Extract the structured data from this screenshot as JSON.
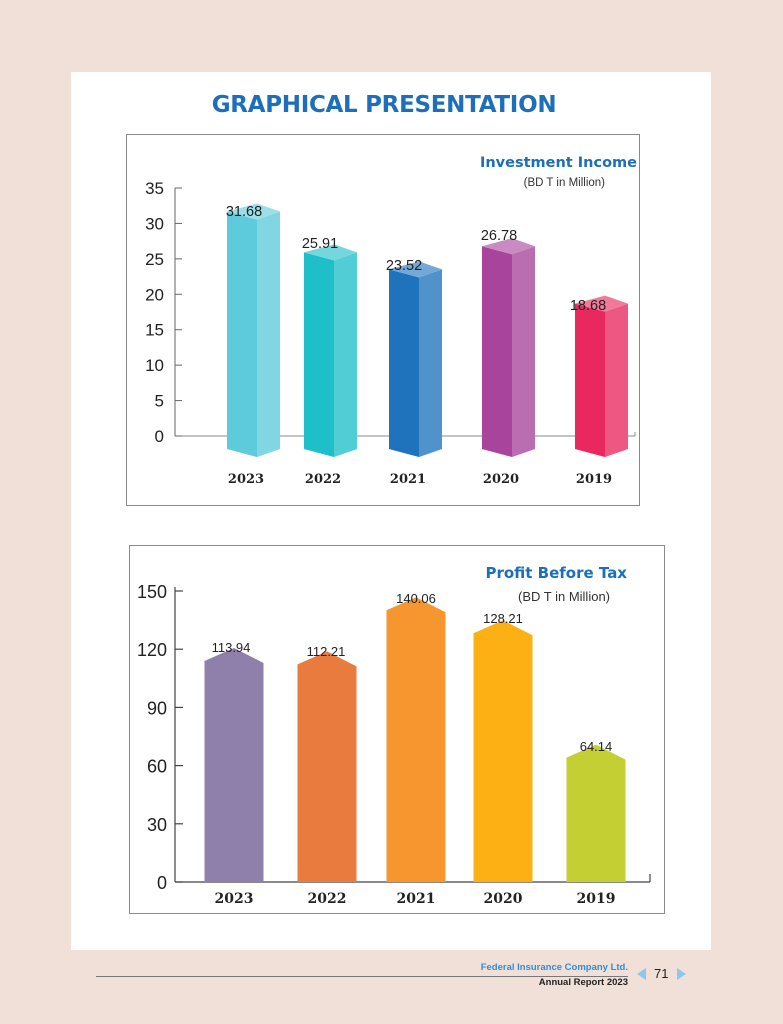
{
  "page": {
    "heading": "GRAPHICAL PRESENTATION",
    "footer": {
      "company": "Federal Insurance Company Ltd.",
      "report": "Annual Report 2023",
      "page_number": "71"
    }
  },
  "chart_data": [
    {
      "type": "bar",
      "title": "Investment Income",
      "subtitle": "(BD T in Million)",
      "categories": [
        "2023",
        "2022",
        "2021",
        "2020",
        "2019"
      ],
      "values": [
        31.68,
        25.91,
        23.52,
        26.78,
        18.68
      ],
      "value_labels": [
        "31.68",
        "25.91",
        "23.52",
        "26.78",
        "18.68"
      ],
      "colors": [
        "#5ecbdc",
        "#1fbfc9",
        "#1f73bd",
        "#a8449c",
        "#e8285e"
      ],
      "ylim": [
        0,
        35
      ],
      "yticks": [
        0,
        5,
        10,
        15,
        20,
        25,
        30,
        35
      ]
    },
    {
      "type": "bar",
      "title": "Profit Before Tax",
      "subtitle": "(BD T in Million)",
      "categories": [
        "2023",
        "2022",
        "2021",
        "2020",
        "2019"
      ],
      "values": [
        113.94,
        112.21,
        140.06,
        128.21,
        64.14
      ],
      "value_labels": [
        "113.94",
        "112.21",
        "140.06",
        "128.21",
        "64.14"
      ],
      "colors": [
        "#8e7fab",
        "#e97b3f",
        "#f7962e",
        "#fcb013",
        "#c3cf33"
      ],
      "ylim": [
        0,
        150
      ],
      "yticks": [
        0,
        30,
        60,
        90,
        120,
        150
      ]
    }
  ]
}
